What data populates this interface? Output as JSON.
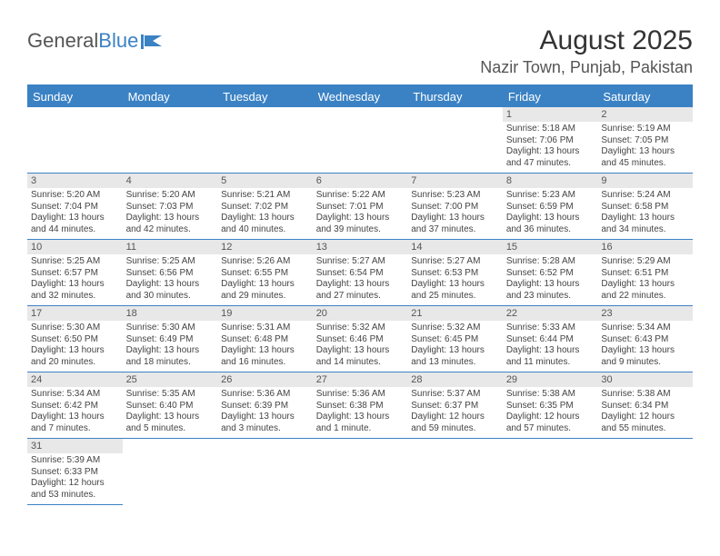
{
  "logo": {
    "text1": "General",
    "text2": "Blue"
  },
  "title": "August 2025",
  "location": "Nazir Town, Punjab, Pakistan",
  "colors": {
    "header_bg": "#3b82c4",
    "header_text": "#ffffff",
    "daynum_bg": "#e8e8e8",
    "border": "#3b82c4",
    "body_text": "#444444"
  },
  "daysOfWeek": [
    "Sunday",
    "Monday",
    "Tuesday",
    "Wednesday",
    "Thursday",
    "Friday",
    "Saturday"
  ],
  "weeks": [
    [
      null,
      null,
      null,
      null,
      null,
      {
        "n": "1",
        "sr": "5:18 AM",
        "ss": "7:06 PM",
        "dl": "13 hours and 47 minutes."
      },
      {
        "n": "2",
        "sr": "5:19 AM",
        "ss": "7:05 PM",
        "dl": "13 hours and 45 minutes."
      }
    ],
    [
      {
        "n": "3",
        "sr": "5:20 AM",
        "ss": "7:04 PM",
        "dl": "13 hours and 44 minutes."
      },
      {
        "n": "4",
        "sr": "5:20 AM",
        "ss": "7:03 PM",
        "dl": "13 hours and 42 minutes."
      },
      {
        "n": "5",
        "sr": "5:21 AM",
        "ss": "7:02 PM",
        "dl": "13 hours and 40 minutes."
      },
      {
        "n": "6",
        "sr": "5:22 AM",
        "ss": "7:01 PM",
        "dl": "13 hours and 39 minutes."
      },
      {
        "n": "7",
        "sr": "5:23 AM",
        "ss": "7:00 PM",
        "dl": "13 hours and 37 minutes."
      },
      {
        "n": "8",
        "sr": "5:23 AM",
        "ss": "6:59 PM",
        "dl": "13 hours and 36 minutes."
      },
      {
        "n": "9",
        "sr": "5:24 AM",
        "ss": "6:58 PM",
        "dl": "13 hours and 34 minutes."
      }
    ],
    [
      {
        "n": "10",
        "sr": "5:25 AM",
        "ss": "6:57 PM",
        "dl": "13 hours and 32 minutes."
      },
      {
        "n": "11",
        "sr": "5:25 AM",
        "ss": "6:56 PM",
        "dl": "13 hours and 30 minutes."
      },
      {
        "n": "12",
        "sr": "5:26 AM",
        "ss": "6:55 PM",
        "dl": "13 hours and 29 minutes."
      },
      {
        "n": "13",
        "sr": "5:27 AM",
        "ss": "6:54 PM",
        "dl": "13 hours and 27 minutes."
      },
      {
        "n": "14",
        "sr": "5:27 AM",
        "ss": "6:53 PM",
        "dl": "13 hours and 25 minutes."
      },
      {
        "n": "15",
        "sr": "5:28 AM",
        "ss": "6:52 PM",
        "dl": "13 hours and 23 minutes."
      },
      {
        "n": "16",
        "sr": "5:29 AM",
        "ss": "6:51 PM",
        "dl": "13 hours and 22 minutes."
      }
    ],
    [
      {
        "n": "17",
        "sr": "5:30 AM",
        "ss": "6:50 PM",
        "dl": "13 hours and 20 minutes."
      },
      {
        "n": "18",
        "sr": "5:30 AM",
        "ss": "6:49 PM",
        "dl": "13 hours and 18 minutes."
      },
      {
        "n": "19",
        "sr": "5:31 AM",
        "ss": "6:48 PM",
        "dl": "13 hours and 16 minutes."
      },
      {
        "n": "20",
        "sr": "5:32 AM",
        "ss": "6:46 PM",
        "dl": "13 hours and 14 minutes."
      },
      {
        "n": "21",
        "sr": "5:32 AM",
        "ss": "6:45 PM",
        "dl": "13 hours and 13 minutes."
      },
      {
        "n": "22",
        "sr": "5:33 AM",
        "ss": "6:44 PM",
        "dl": "13 hours and 11 minutes."
      },
      {
        "n": "23",
        "sr": "5:34 AM",
        "ss": "6:43 PM",
        "dl": "13 hours and 9 minutes."
      }
    ],
    [
      {
        "n": "24",
        "sr": "5:34 AM",
        "ss": "6:42 PM",
        "dl": "13 hours and 7 minutes."
      },
      {
        "n": "25",
        "sr": "5:35 AM",
        "ss": "6:40 PM",
        "dl": "13 hours and 5 minutes."
      },
      {
        "n": "26",
        "sr": "5:36 AM",
        "ss": "6:39 PM",
        "dl": "13 hours and 3 minutes."
      },
      {
        "n": "27",
        "sr": "5:36 AM",
        "ss": "6:38 PM",
        "dl": "13 hours and 1 minute."
      },
      {
        "n": "28",
        "sr": "5:37 AM",
        "ss": "6:37 PM",
        "dl": "12 hours and 59 minutes."
      },
      {
        "n": "29",
        "sr": "5:38 AM",
        "ss": "6:35 PM",
        "dl": "12 hours and 57 minutes."
      },
      {
        "n": "30",
        "sr": "5:38 AM",
        "ss": "6:34 PM",
        "dl": "12 hours and 55 minutes."
      }
    ],
    [
      {
        "n": "31",
        "sr": "5:39 AM",
        "ss": "6:33 PM",
        "dl": "12 hours and 53 minutes."
      },
      null,
      null,
      null,
      null,
      null,
      null
    ]
  ],
  "labels": {
    "sunrise": "Sunrise: ",
    "sunset": "Sunset: ",
    "daylight": "Daylight: "
  }
}
